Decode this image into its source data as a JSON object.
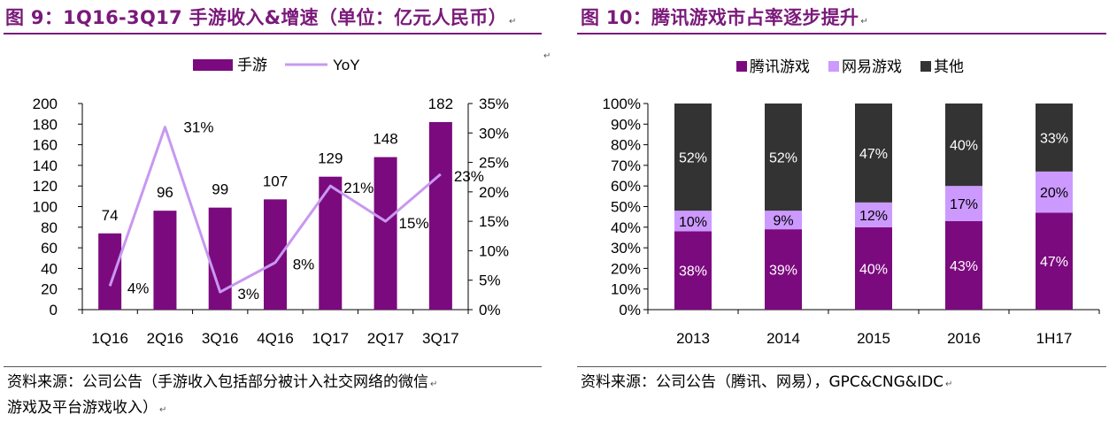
{
  "left_panel": {
    "title": "图 9：1Q16-3Q17 手游收入&增速（单位：亿元人民币）",
    "source": [
      "资料来源：公司公告（手游收入包括部分被计入社交网络的微信",
      "游戏及平台游戏收入）"
    ]
  },
  "right_panel": {
    "title": "图 10：腾讯游戏市占率逐步提升",
    "source": "资料来源：公司公告（腾讯、网易），GPC&CNG&IDC"
  },
  "colors": {
    "title": "#7a1a7a",
    "bar_purple": "#7b0a7e",
    "line_purple": "#c898f0",
    "netease": "#cc99ff",
    "other": "#333333"
  },
  "chart_data": [
    {
      "type": "bar",
      "title": "",
      "categories": [
        "1Q16",
        "2Q16",
        "3Q16",
        "4Q16",
        "1Q17",
        "2Q17",
        "3Q17"
      ],
      "series": [
        {
          "name": "手游",
          "type": "bar",
          "axis": "left",
          "values": [
            74,
            96,
            99,
            107,
            129,
            148,
            182
          ],
          "labels": [
            "74",
            "96",
            "99",
            "107",
            "129",
            "148",
            "182"
          ]
        },
        {
          "name": "YoY",
          "type": "line",
          "axis": "right",
          "values": [
            4,
            31,
            3,
            8,
            21,
            15,
            23
          ],
          "labels": [
            "4%",
            "31%",
            "3%",
            "8%",
            "21%",
            "15%",
            "23%"
          ]
        }
      ],
      "ylim": [
        0,
        200
      ],
      "yticks": [
        "0",
        "20",
        "40",
        "60",
        "80",
        "100",
        "120",
        "140",
        "160",
        "180",
        "200"
      ],
      "y2lim": [
        0,
        35
      ],
      "y2ticks": [
        "0%",
        "5%",
        "10%",
        "15%",
        "20%",
        "25%",
        "30%",
        "35%"
      ],
      "legend": "top",
      "grid": false
    },
    {
      "type": "bar",
      "stacked": true,
      "title": "",
      "categories": [
        "2013",
        "2014",
        "2015",
        "2016",
        "1H17"
      ],
      "series": [
        {
          "name": "腾讯游戏",
          "values": [
            38,
            39,
            40,
            43,
            47
          ],
          "labels": [
            "38%",
            "39%",
            "40%",
            "43%",
            "47%"
          ]
        },
        {
          "name": "网易游戏",
          "values": [
            10,
            9,
            12,
            17,
            20
          ],
          "labels": [
            "10%",
            "9%",
            "12%",
            "17%",
            "20%"
          ]
        },
        {
          "name": "其他",
          "values": [
            52,
            52,
            47,
            40,
            33
          ],
          "labels": [
            "52%",
            "52%",
            "47%",
            "40%",
            "33%"
          ]
        }
      ],
      "ylim": [
        0,
        100
      ],
      "yticks": [
        "0%",
        "10%",
        "20%",
        "30%",
        "40%",
        "50%",
        "60%",
        "70%",
        "80%",
        "90%",
        "100%"
      ],
      "legend": "top",
      "grid": false
    }
  ]
}
